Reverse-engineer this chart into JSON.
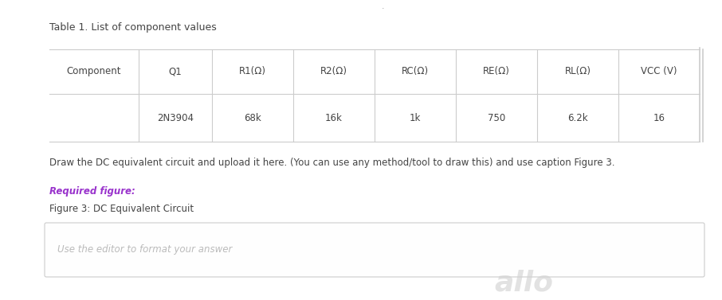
{
  "title": "Table 1. List of component values",
  "title_small_dot": "˙",
  "headers": [
    "Component",
    "Q1",
    "R1(Ω)",
    "R2(Ω)",
    "RC(Ω)",
    "RE(Ω)",
    "RL(Ω)",
    "VCC (V)"
  ],
  "values": [
    "",
    "2N3904",
    "68k",
    "16k",
    "1k",
    "750",
    "6.2k",
    "16"
  ],
  "instruction": "Draw the DC equivalent circuit and upload it here. (You can use any method/tool to draw this) and use caption Figure 3.",
  "required_label": "Required figure:",
  "figure_caption": "Figure 3: DC Equivalent Circuit",
  "editor_placeholder": "Use the editor to format your answer",
  "bg_color": "#ffffff",
  "text_color": "#444444",
  "light_text": "#bbbbbb",
  "required_color": "#9933cc",
  "border_color": "#cccccc",
  "table_border_color": "#cccccc",
  "col_widths": [
    1.15,
    0.95,
    1.05,
    1.05,
    1.05,
    1.05,
    1.05,
    1.05
  ],
  "watermark_text": "allo"
}
